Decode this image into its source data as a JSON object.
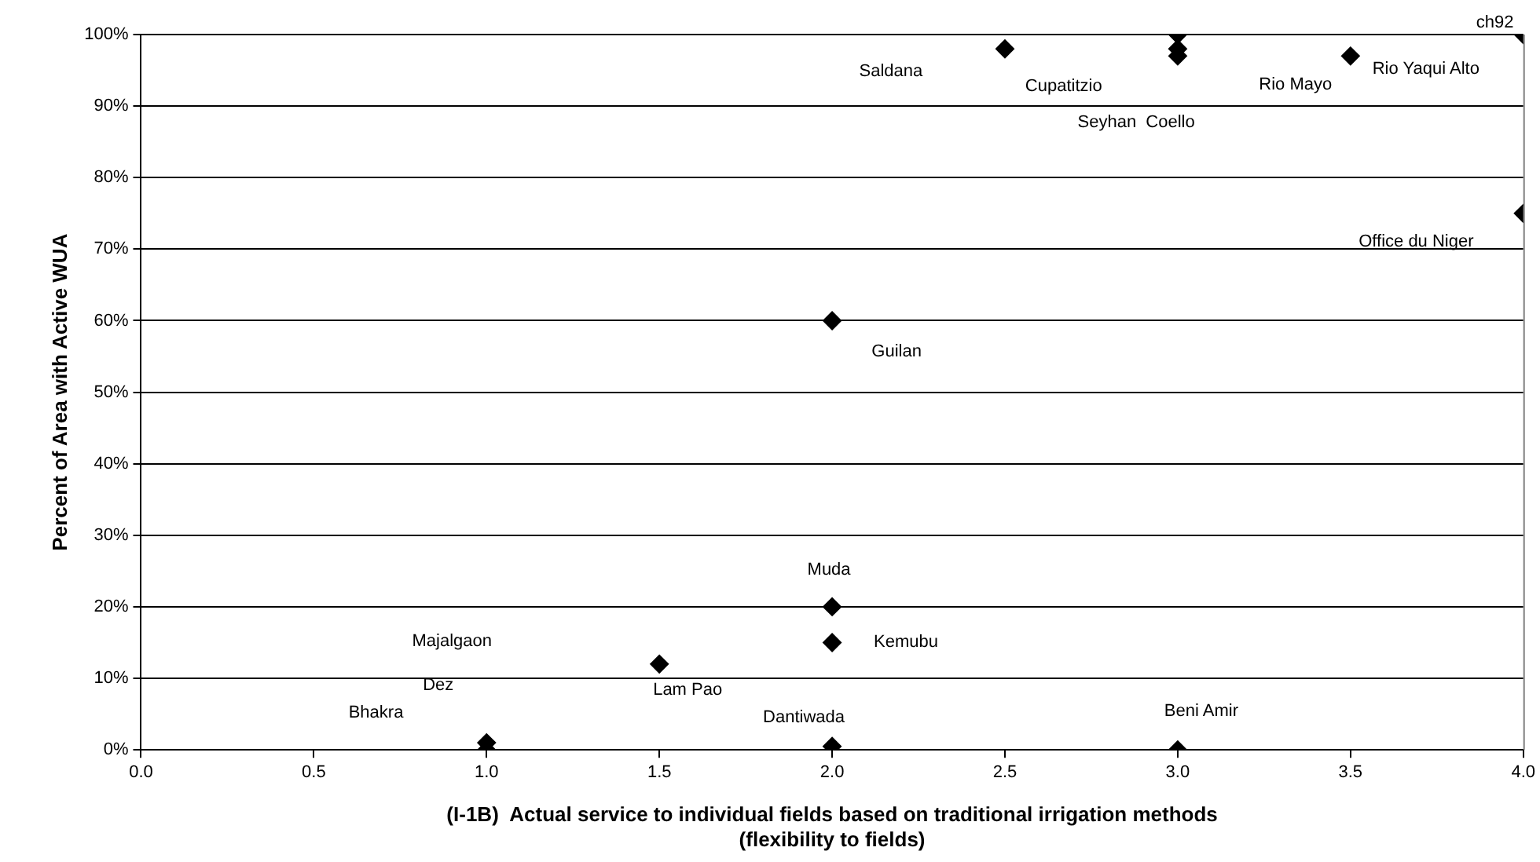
{
  "chart_data": {
    "type": "scatter",
    "xlabel": "(I-1B)  Actual service to individual fields based on traditional irrigation methods\n(flexibility to fields)",
    "ylabel": "Percent of Area with Active WUA",
    "series": [
      {
        "color": "#000000",
        "x": [
          1,
          1,
          1.5,
          2,
          2,
          2,
          2,
          2.5,
          3,
          3,
          3,
          3,
          3.5,
          4,
          4
        ],
        "values": [
          1,
          0,
          12,
          20,
          15,
          0.5,
          60,
          98,
          100,
          98,
          97,
          0,
          97,
          100,
          75
        ]
      }
    ],
    "xlim": [
      0,
      4
    ],
    "xticks": [
      {
        "value": 0,
        "label": "0.0"
      },
      {
        "value": 0.5,
        "label": "0.5"
      },
      {
        "value": 1,
        "label": "1.0"
      },
      {
        "value": 1.5,
        "label": "1.5"
      },
      {
        "value": 2,
        "label": "2.0"
      },
      {
        "value": 2.5,
        "label": "2.5"
      },
      {
        "value": 3,
        "label": "3.0"
      },
      {
        "value": 3.5,
        "label": "3.5"
      },
      {
        "value": 4,
        "label": "4.0"
      }
    ],
    "ylim": [
      0,
      100
    ],
    "yticks": [
      {
        "value": 0,
        "label": "0%"
      },
      {
        "value": 10,
        "label": "10%"
      },
      {
        "value": 20,
        "label": "20%"
      },
      {
        "value": 30,
        "label": "30%"
      },
      {
        "value": 40,
        "label": "40%"
      },
      {
        "value": 50,
        "label": "50%"
      },
      {
        "value": 60,
        "label": "60%"
      },
      {
        "value": 70,
        "label": "70%"
      },
      {
        "value": 80,
        "label": "80%"
      },
      {
        "value": 90,
        "label": "90%"
      },
      {
        "value": 100,
        "label": "100%"
      }
    ],
    "grid": "y",
    "marker": "diamond",
    "legend": false,
    "annotations": [
      "Saldana",
      "Cupatitzio",
      {
        "text": "Rio Mayo",
        "x": 3.5,
        "y": 97
      },
      {
        "text": "Rio Yaqui Alto",
        "x": 3.5,
        "y": 97
      },
      "Seyhan  Coello",
      {
        "text": "ch92",
        "x": 4,
        "y": 100
      },
      "Office du Niger",
      {
        "text": "Guilan",
        "x": 2,
        "y": 60
      },
      {
        "text": "Muda",
        "x": 2,
        "y": 20
      },
      {
        "text": "Kemubu",
        "x": 2,
        "y": 15
      },
      "Majalgaon",
      "Dez",
      {
        "text": "Lam Pao",
        "x": 1.5,
        "y": 12
      },
      "Bhakra",
      {
        "text": "Dantiwada",
        "x": 2,
        "y": 0.5
      },
      {
        "text": "Beni Amir",
        "x": 3,
        "y": 0
      }
    ]
  }
}
